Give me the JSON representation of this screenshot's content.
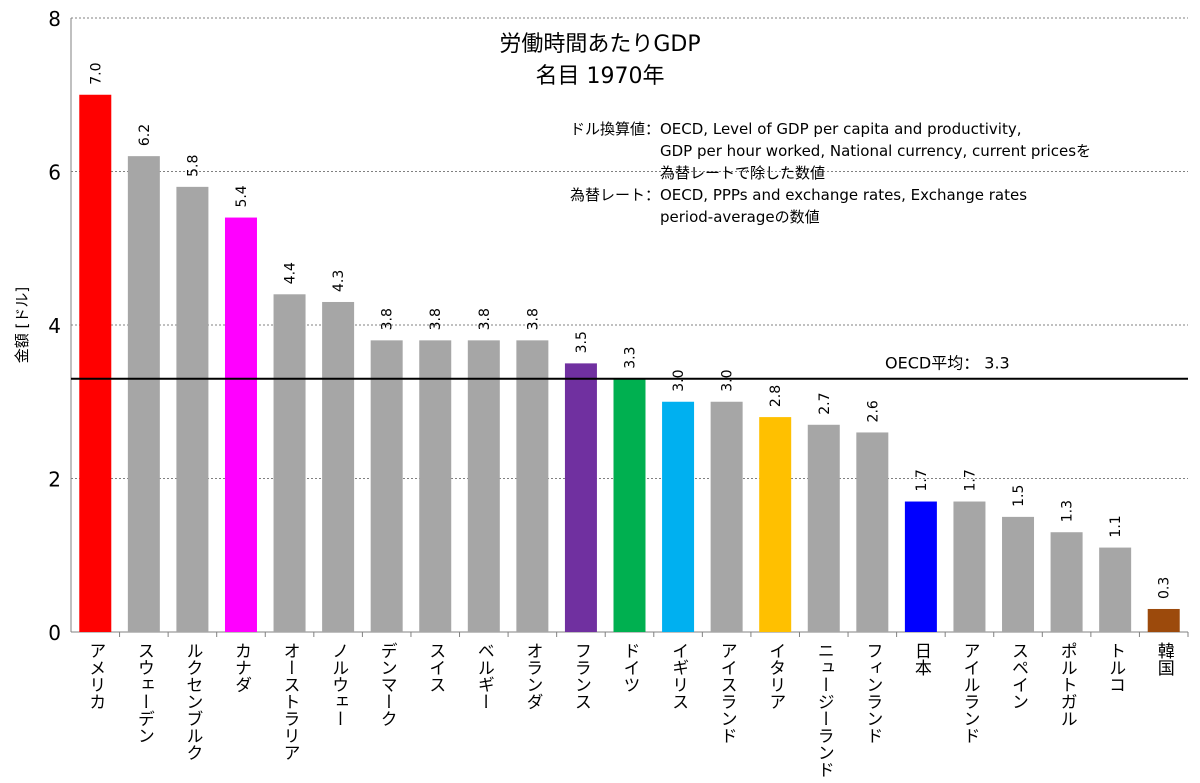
{
  "chart_data": {
    "type": "bar",
    "title": "労働時間あたりGDP",
    "subtitle": "名目 1970年",
    "ylabel": "金額 [ドル]",
    "xlabel": "",
    "ylim": [
      0,
      8
    ],
    "yticks": [
      0,
      2,
      4,
      6,
      8
    ],
    "grid": true,
    "categories": [
      "アメリカ",
      "スウェーデン",
      "ルクセンブルク",
      "カナダ",
      "オーストラリア",
      "ノルウェー",
      "デンマーク",
      "スイス",
      "ベルギー",
      "オランダ",
      "フランス",
      "ドイツ",
      "イギリス",
      "アイスランド",
      "イタリア",
      "ニュージーランド",
      "フィンランド",
      "日本",
      "アイルランド",
      "スペイン",
      "ポルトガル",
      "トルコ",
      "韓国"
    ],
    "values": [
      7.0,
      6.2,
      5.8,
      5.4,
      4.4,
      4.3,
      3.8,
      3.8,
      3.8,
      3.8,
      3.5,
      3.3,
      3.0,
      3.0,
      2.8,
      2.7,
      2.6,
      1.7,
      1.7,
      1.5,
      1.3,
      1.1,
      0.3
    ],
    "colors": [
      "#ff0000",
      "#a6a6a6",
      "#a6a6a6",
      "#ff00ff",
      "#a6a6a6",
      "#a6a6a6",
      "#a6a6a6",
      "#a6a6a6",
      "#a6a6a6",
      "#a6a6a6",
      "#7030a0",
      "#00b050",
      "#00b0f0",
      "#a6a6a6",
      "#ffc000",
      "#a6a6a6",
      "#a6a6a6",
      "#0000ff",
      "#a6a6a6",
      "#a6a6a6",
      "#a6a6a6",
      "#a6a6a6",
      "#9c4a0c"
    ],
    "reference_line": {
      "label": "OECD平均： 3.3",
      "value": 3.3
    },
    "notes": [
      "ドル換算値：OECD, Level of GDP per capita and productivity,\n　　　　　　GDP per hour worked, National currency, current pricesを\n　　　　　　為替レートで除した数値",
      "為替レート：OECD, PPPs and exchange rates, Exchange rates\n　　　　　　period-averageの数値"
    ]
  }
}
